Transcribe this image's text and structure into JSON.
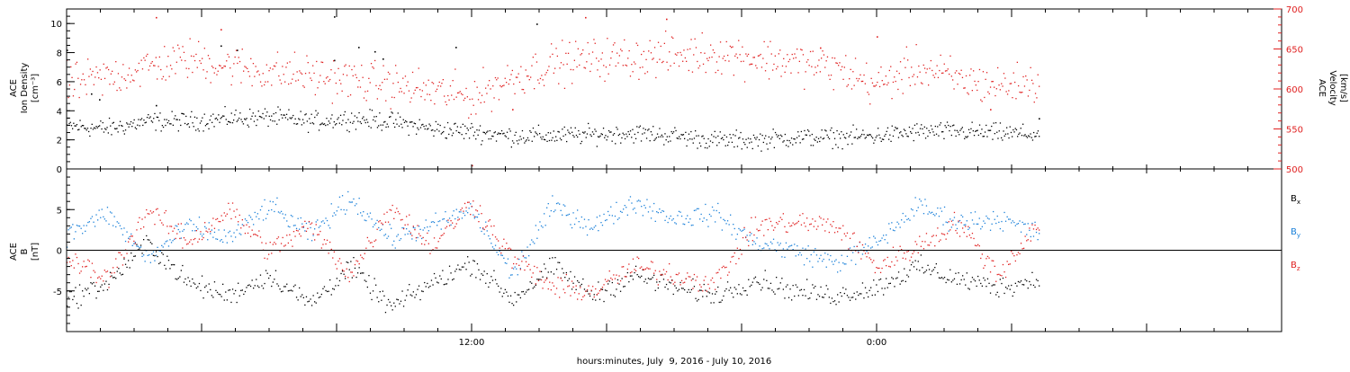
{
  "chart_data": [
    {
      "type": "scatter",
      "panel": "top",
      "left_axis": {
        "label_lines": [
          "ACE",
          "Ion Density",
          "[cm⁻³]"
        ],
        "ylim": [
          0,
          11
        ],
        "ticks": [
          0,
          2,
          4,
          6,
          8,
          10
        ],
        "minor_step": 0.5
      },
      "right_axis": {
        "label_lines": [
          "ACE",
          "Velocity",
          "[km/s]"
        ],
        "ylim": [
          500,
          700
        ],
        "ticks": [
          500,
          550,
          600,
          650,
          700
        ],
        "minor_step": 10,
        "color": "#e02020"
      },
      "series": [
        {
          "axis": "left",
          "color": "#000000",
          "x": [
            0,
            0.05,
            0.1,
            0.15,
            0.2,
            0.25,
            0.3,
            0.35,
            0.4,
            0.45,
            0.5,
            0.55,
            0.6,
            0.65,
            0.7,
            0.75,
            0.8,
            0.85,
            0.9,
            0.95,
            1.0,
            1.05,
            1.1,
            1.15,
            1.2
          ],
          "y": [
            3.0,
            2.8,
            3.3,
            3.3,
            3.5,
            3.6,
            3.3,
            3.5,
            3.3,
            2.8,
            2.6,
            2.3,
            2.3,
            2.4,
            2.5,
            2.3,
            2.0,
            2.0,
            2.2,
            2.2,
            2.3,
            2.6,
            2.6,
            2.5,
            2.4
          ],
          "spread": 0.55,
          "outliers": [
            [
              0.33,
              10.5
            ],
            [
              0.58,
              10.0
            ],
            [
              0.0,
              8.2
            ],
            [
              0.19,
              8.5
            ],
            [
              0.21,
              8.2
            ],
            [
              0.36,
              8.4
            ],
            [
              0.48,
              8.4
            ],
            [
              0.33,
              7.5
            ],
            [
              0.38,
              8.1
            ],
            [
              0.39,
              7.6
            ],
            [
              0.03,
              5.2
            ],
            [
              0.04,
              4.8
            ],
            [
              0.11,
              4.4
            ],
            [
              1.2,
              3.5
            ]
          ]
        },
        {
          "axis": "right",
          "color": "#e02020",
          "x": [
            0,
            0.05,
            0.1,
            0.15,
            0.2,
            0.25,
            0.3,
            0.35,
            0.4,
            0.45,
            0.5,
            0.55,
            0.6,
            0.65,
            0.7,
            0.75,
            0.8,
            0.85,
            0.9,
            0.95,
            1.0,
            1.05,
            1.1,
            1.15,
            1.2
          ],
          "y": [
            605,
            615,
            628,
            638,
            630,
            622,
            618,
            612,
            606,
            598,
            590,
            615,
            632,
            638,
            640,
            642,
            646,
            640,
            634,
            626,
            605,
            628,
            612,
            605,
            608
          ],
          "spread": 22,
          "outliers": [
            [
              0.11,
              690
            ],
            [
              0.19,
              675
            ],
            [
              0.64,
              690
            ],
            [
              0.74,
              688
            ],
            [
              0.5,
              505
            ],
            [
              0.55,
              575
            ],
            [
              1.0,
              666
            ],
            [
              1.14,
              575
            ],
            [
              0.93,
              652
            ]
          ]
        }
      ],
      "time_range_days": [
        0,
        1.5
      ]
    },
    {
      "type": "scatter",
      "panel": "bottom",
      "left_axis": {
        "label_lines": [
          "ACE",
          "B",
          "[nT]"
        ],
        "ylim": [
          -10,
          10
        ],
        "ticks": [
          -5,
          0,
          5
        ],
        "minor_step": 1
      },
      "zero_line": true,
      "series": [
        {
          "name": "Bx",
          "color": "#000000",
          "x": [
            0,
            0.05,
            0.1,
            0.15,
            0.2,
            0.25,
            0.3,
            0.35,
            0.4,
            0.45,
            0.5,
            0.55,
            0.6,
            0.65,
            0.7,
            0.75,
            0.8,
            0.85,
            0.9,
            0.95,
            1.0,
            1.05,
            1.1,
            1.15,
            1.2
          ],
          "y": [
            -6.0,
            -4.0,
            1.0,
            -4.0,
            -5.5,
            -3.0,
            -6.5,
            -2.0,
            -7.0,
            -4.0,
            -1.5,
            -6.0,
            -2.0,
            -5.5,
            -3.0,
            -4.5,
            -5.5,
            -3.5,
            -5.0,
            -5.5,
            -4.5,
            -2.0,
            -3.5,
            -4.5,
            -3.5
          ],
          "spread": 1.1
        },
        {
          "name": "By",
          "color": "#1a80d9",
          "x": [
            0,
            0.05,
            0.1,
            0.15,
            0.2,
            0.25,
            0.3,
            0.35,
            0.4,
            0.45,
            0.5,
            0.55,
            0.6,
            0.65,
            0.7,
            0.75,
            0.8,
            0.85,
            0.9,
            0.95,
            1.0,
            1.05,
            1.1,
            1.15,
            1.2
          ],
          "y": [
            2.0,
            4.5,
            -1.0,
            3.0,
            1.5,
            5.5,
            2.0,
            6.5,
            1.5,
            3.0,
            5.0,
            -3.0,
            5.5,
            3.0,
            6.0,
            4.0,
            4.5,
            1.0,
            0.0,
            -1.5,
            1.0,
            5.5,
            3.5,
            4.0,
            2.0
          ],
          "spread": 1.1
        },
        {
          "name": "Bz",
          "color": "#e02020",
          "x": [
            0,
            0.05,
            0.1,
            0.15,
            0.2,
            0.25,
            0.3,
            0.35,
            0.4,
            0.45,
            0.5,
            0.55,
            0.6,
            0.65,
            0.7,
            0.75,
            0.8,
            0.85,
            0.9,
            0.95,
            1.0,
            1.05,
            1.1,
            1.15,
            1.2
          ],
          "y": [
            -1.0,
            -3.5,
            5.0,
            1.0,
            5.0,
            0.0,
            3.0,
            -3.0,
            5.5,
            0.5,
            6.0,
            -1.0,
            -4.5,
            -5.0,
            -2.0,
            -3.0,
            -4.0,
            3.0,
            3.5,
            3.0,
            -2.0,
            0.5,
            3.5,
            -3.0,
            3.5
          ],
          "spread": 1.2
        }
      ],
      "legend": [
        {
          "name": "B",
          "subscript": "x",
          "color": "#000000"
        },
        {
          "name": "B",
          "subscript": "y",
          "color": "#1a80d9"
        },
        {
          "name": "B",
          "subscript": "z",
          "color": "#e02020"
        }
      ],
      "time_range_days": [
        0,
        1.5
      ]
    }
  ],
  "x_axis": {
    "tick_labels": [
      {
        "t": 0.5,
        "label": "12:00"
      },
      {
        "t": 1.0,
        "label": "0:00"
      }
    ],
    "minor_step_days": 0.041667,
    "title": "hours:minutes, July  9, 2016 - July 10, 2016"
  }
}
